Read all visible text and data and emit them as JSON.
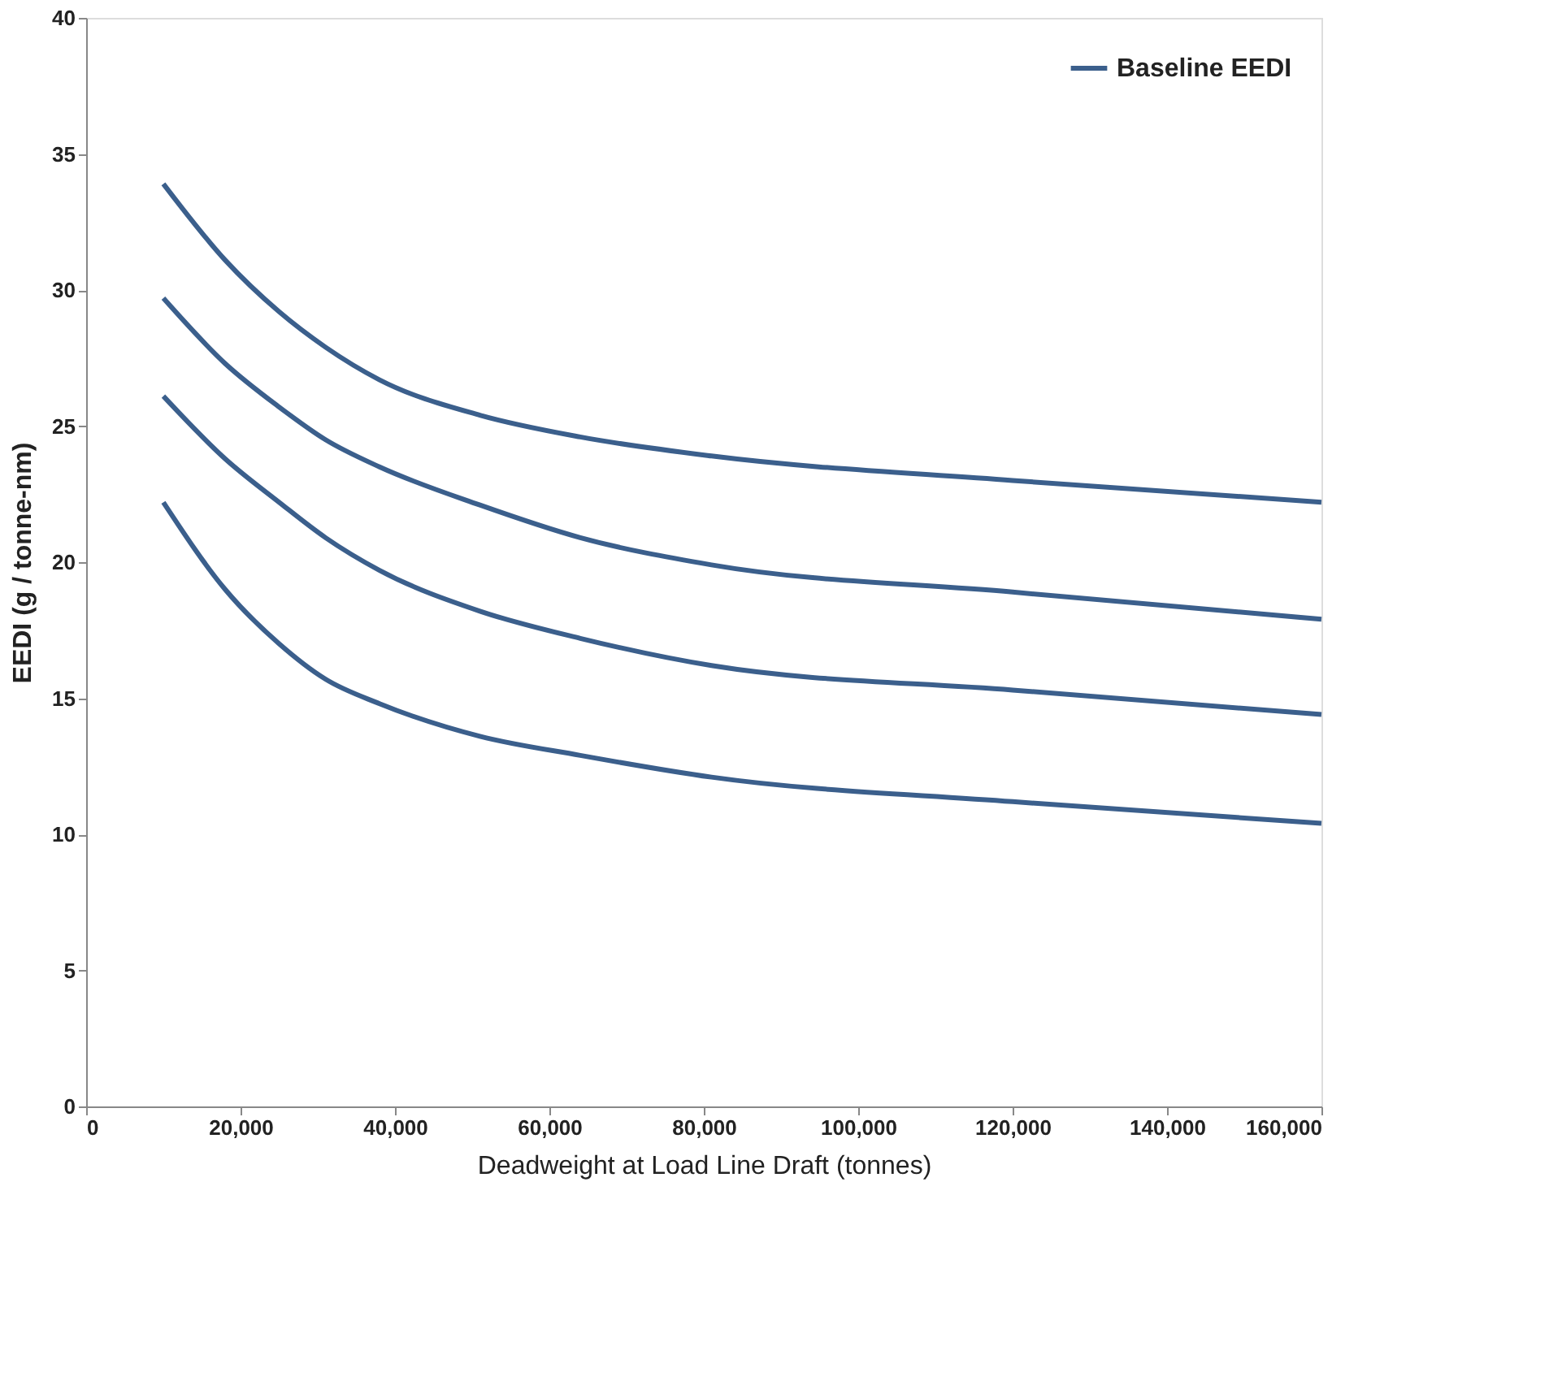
{
  "chart_data": {
    "type": "line",
    "xlabel": "Deadweight at Load Line Draft  (tonnes)",
    "ylabel": "EEDI  (g / tonne-nm)",
    "x": [
      10000,
      18000,
      25000,
      31000,
      38000,
      51000,
      64000,
      81000,
      120000,
      160000
    ],
    "series": [
      {
        "name": "Baseline EEDI",
        "color": "#3b5f8c",
        "values": [
          33.9,
          31.1,
          29.2,
          27.9,
          26.7,
          25.4,
          24.6,
          23.9,
          23.0,
          22.2
        ]
      },
      {
        "color": "#3b5f8c",
        "values": [
          29.7,
          27.3,
          25.7,
          24.5,
          23.5,
          22.1,
          20.9,
          19.9,
          18.9,
          17.9
        ]
      },
      {
        "color": "#3b5f8c",
        "values": [
          26.1,
          23.8,
          22.2,
          20.9,
          19.7,
          18.2,
          17.2,
          16.2,
          15.3,
          14.4
        ]
      },
      {
        "color": "#3b5f8c",
        "values": [
          22.2,
          19.0,
          17.0,
          15.7,
          14.8,
          13.6,
          12.9,
          12.1,
          11.2,
          10.4
        ]
      }
    ],
    "xlim": [
      0,
      160000
    ],
    "xticks": [
      0,
      {
        "value": 20000,
        "label": "20,000"
      },
      {
        "value": 40000,
        "label": "40,000"
      },
      {
        "value": 60000,
        "label": "60,000"
      },
      {
        "value": 80000,
        "label": "80,000"
      },
      {
        "value": 100000,
        "label": "100,000"
      },
      {
        "value": 120000,
        "label": "120,000"
      },
      {
        "value": 140000,
        "label": "140,000"
      },
      {
        "value": 160000,
        "label": "160,000"
      }
    ],
    "ylim": [
      0,
      40
    ],
    "yticks": [
      0,
      5,
      10,
      15,
      20,
      25,
      30,
      35,
      40
    ],
    "grid": false,
    "legend": "top right",
    "marker": "none",
    "line_style": "solid"
  }
}
